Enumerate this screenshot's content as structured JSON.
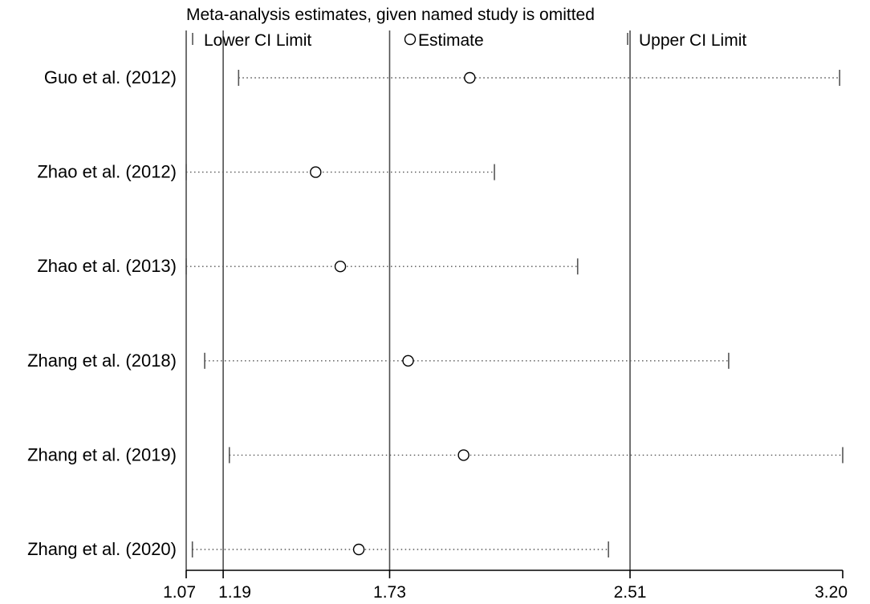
{
  "chart_data": {
    "type": "forest",
    "title": "Meta-analysis estimates, given named study is omitted",
    "legend": {
      "position": "top",
      "items": [
        {
          "key": "lower",
          "label": "Lower CI Limit",
          "marker": "bar"
        },
        {
          "key": "estimate",
          "label": "Estimate",
          "marker": "circle"
        },
        {
          "key": "upper",
          "label": "Upper CI Limit",
          "marker": "bar"
        }
      ]
    },
    "xlim": [
      1.07,
      3.2
    ],
    "x_tick_labels": [
      "1.07",
      "1.19",
      "1.73",
      "2.51",
      "3.20"
    ],
    "x_ticks": [
      1.07,
      1.19,
      1.73,
      2.51,
      3.2
    ],
    "reference_lines": [
      1.07,
      1.19,
      1.73,
      2.51
    ],
    "grid": false,
    "studies": [
      {
        "name": "Guo et al. (2012)",
        "lower": 1.24,
        "estimate": 1.99,
        "upper": 3.19
      },
      {
        "name": "Zhao et al. (2012)",
        "lower": 1.07,
        "estimate": 1.49,
        "upper": 2.07
      },
      {
        "name": "Zhao et al. (2013)",
        "lower": 1.07,
        "estimate": 1.57,
        "upper": 2.34
      },
      {
        "name": "Zhang et al. (2018)",
        "lower": 1.13,
        "estimate": 1.79,
        "upper": 2.83
      },
      {
        "name": "Zhang et al. (2019)",
        "lower": 1.21,
        "estimate": 1.97,
        "upper": 3.2
      },
      {
        "name": "Zhang et al. (2020)",
        "lower": 1.09,
        "estimate": 1.63,
        "upper": 2.44
      }
    ],
    "colors": {
      "axis": "#000000",
      "reference_line": "#4d4d4d",
      "ci_line": "#555555",
      "marker": "#000000"
    }
  }
}
